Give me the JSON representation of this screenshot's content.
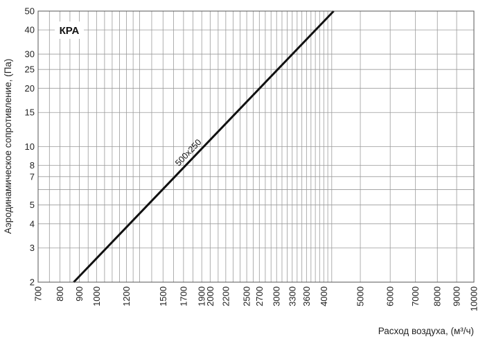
{
  "chart_data": {
    "type": "line",
    "badge": "КРА",
    "xlabel": "Расход воздуха, (м³/ч)",
    "ylabel": "Аэродинамическое сопротивление, (Па)",
    "x_scale": "log",
    "y_scale": "log",
    "xlim": [
      700,
      10000
    ],
    "ylim": [
      2,
      50
    ],
    "grid": true,
    "x_ticks": [
      700,
      800,
      900,
      1000,
      1200,
      1500,
      1700,
      1900,
      2000,
      2200,
      2500,
      2700,
      3000,
      3300,
      3600,
      4000,
      5000,
      6000,
      7000,
      8000,
      9000,
      10000
    ],
    "x_tick_labels": [
      "700",
      "800",
      "900",
      "1000",
      "1200",
      "1500",
      "1700",
      "1900",
      "2000",
      "2200",
      "2500",
      "2700",
      "3000",
      "3300",
      "3600",
      "4000",
      "5000",
      "6000",
      "7000",
      "8000",
      "9000",
      "10000"
    ],
    "y_ticks": [
      2,
      3,
      4,
      5,
      7,
      8,
      10,
      15,
      20,
      25,
      30,
      40,
      50
    ],
    "y_tick_labels": [
      "2",
      "3",
      "4",
      "5",
      "7",
      "8",
      "10",
      "15",
      "20",
      "25",
      "30",
      "40",
      "50"
    ],
    "x_minor_grid": [
      750,
      850,
      950,
      1050,
      1100,
      1150,
      1250,
      1300,
      1400,
      1600,
      1800,
      2100,
      2300,
      2400,
      2600,
      2800,
      2900,
      3100,
      3200,
      3400,
      3500,
      3700,
      3800,
      3900,
      4100,
      4200
    ],
    "y_minor_grid": [
      6
    ],
    "series": [
      {
        "name": "500x250",
        "color": "#111111",
        "x": [
          870,
          4250
        ],
        "y": [
          2,
          50
        ]
      }
    ]
  }
}
